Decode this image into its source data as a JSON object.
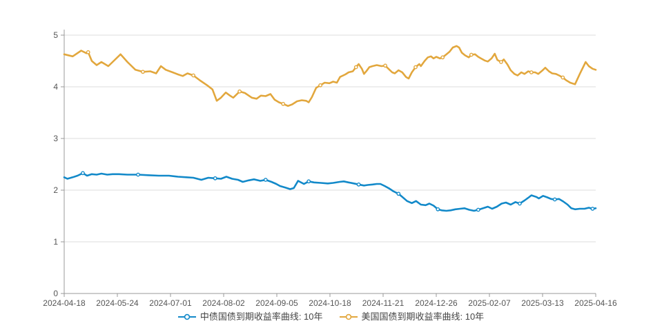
{
  "page": {
    "background": "#ffffff"
  },
  "axes": {
    "axis_color": "#999999",
    "grid_color": "#dcdcdc",
    "text_color": "#555555",
    "legend_text_color": "#444444"
  },
  "chart_data": {
    "type": "line",
    "title": "",
    "xlabel": "",
    "ylabel": "",
    "ylim": [
      0,
      5
    ],
    "y_ticks": [
      0,
      1,
      2,
      3,
      4,
      5
    ],
    "x_tick_labels": [
      "2024-04-18",
      "2024-05-24",
      "2024-07-01",
      "2024-08-02",
      "2024-09-05",
      "2024-10-18",
      "2024-11-21",
      "2024-12-26",
      "2025-02-07",
      "2025-03-13",
      "2025-04-16"
    ],
    "grid": true,
    "legend_position": "bottom-center",
    "x_unit": "fraction-of-axis (0 = 2024-04-18, 1 = 2025-04-16, daily yield data)",
    "series": [
      {
        "name": "中债国债到期收益率曲线: 10年",
        "color": "#1289c9",
        "points": [
          [
            0.0,
            2.25
          ],
          [
            0.006,
            2.22
          ],
          [
            0.016,
            2.25
          ],
          [
            0.025,
            2.28
          ],
          [
            0.035,
            2.33
          ],
          [
            0.043,
            2.28
          ],
          [
            0.052,
            2.31
          ],
          [
            0.061,
            2.3
          ],
          [
            0.07,
            2.32
          ],
          [
            0.081,
            2.3
          ],
          [
            0.091,
            2.31
          ],
          [
            0.103,
            2.31
          ],
          [
            0.119,
            2.3
          ],
          [
            0.139,
            2.3
          ],
          [
            0.158,
            2.29
          ],
          [
            0.178,
            2.28
          ],
          [
            0.197,
            2.28
          ],
          [
            0.214,
            2.26
          ],
          [
            0.23,
            2.25
          ],
          [
            0.243,
            2.24
          ],
          [
            0.258,
            2.2
          ],
          [
            0.271,
            2.24
          ],
          [
            0.284,
            2.23
          ],
          [
            0.295,
            2.22
          ],
          [
            0.305,
            2.26
          ],
          [
            0.316,
            2.22
          ],
          [
            0.327,
            2.2
          ],
          [
            0.336,
            2.16
          ],
          [
            0.347,
            2.19
          ],
          [
            0.357,
            2.21
          ],
          [
            0.369,
            2.18
          ],
          [
            0.379,
            2.2
          ],
          [
            0.39,
            2.16
          ],
          [
            0.399,
            2.12
          ],
          [
            0.406,
            2.08
          ],
          [
            0.416,
            2.05
          ],
          [
            0.425,
            2.02
          ],
          [
            0.432,
            2.04
          ],
          [
            0.44,
            2.18
          ],
          [
            0.451,
            2.12
          ],
          [
            0.46,
            2.17
          ],
          [
            0.47,
            2.15
          ],
          [
            0.483,
            2.14
          ],
          [
            0.496,
            2.13
          ],
          [
            0.506,
            2.14
          ],
          [
            0.518,
            2.16
          ],
          [
            0.526,
            2.17
          ],
          [
            0.535,
            2.15
          ],
          [
            0.545,
            2.13
          ],
          [
            0.554,
            2.11
          ],
          [
            0.564,
            2.09
          ],
          [
            0.571,
            2.1
          ],
          [
            0.58,
            2.11
          ],
          [
            0.588,
            2.12
          ],
          [
            0.595,
            2.12
          ],
          [
            0.603,
            2.08
          ],
          [
            0.612,
            2.03
          ],
          [
            0.619,
            1.98
          ],
          [
            0.629,
            1.93
          ],
          [
            0.636,
            1.87
          ],
          [
            0.645,
            1.79
          ],
          [
            0.654,
            1.75
          ],
          [
            0.662,
            1.79
          ],
          [
            0.671,
            1.72
          ],
          [
            0.68,
            1.71
          ],
          [
            0.687,
            1.74
          ],
          [
            0.695,
            1.7
          ],
          [
            0.703,
            1.63
          ],
          [
            0.71,
            1.61
          ],
          [
            0.719,
            1.6
          ],
          [
            0.727,
            1.61
          ],
          [
            0.736,
            1.63
          ],
          [
            0.745,
            1.64
          ],
          [
            0.753,
            1.65
          ],
          [
            0.762,
            1.62
          ],
          [
            0.771,
            1.6
          ],
          [
            0.779,
            1.62
          ],
          [
            0.788,
            1.65
          ],
          [
            0.797,
            1.68
          ],
          [
            0.805,
            1.64
          ],
          [
            0.814,
            1.68
          ],
          [
            0.823,
            1.74
          ],
          [
            0.831,
            1.76
          ],
          [
            0.84,
            1.72
          ],
          [
            0.849,
            1.77
          ],
          [
            0.857,
            1.74
          ],
          [
            0.866,
            1.8
          ],
          [
            0.874,
            1.86
          ],
          [
            0.879,
            1.9
          ],
          [
            0.888,
            1.87
          ],
          [
            0.893,
            1.84
          ],
          [
            0.901,
            1.89
          ],
          [
            0.909,
            1.86
          ],
          [
            0.916,
            1.83
          ],
          [
            0.923,
            1.82
          ],
          [
            0.931,
            1.83
          ],
          [
            0.939,
            1.78
          ],
          [
            0.947,
            1.72
          ],
          [
            0.954,
            1.65
          ],
          [
            0.961,
            1.63
          ],
          [
            0.97,
            1.64
          ],
          [
            0.979,
            1.64
          ],
          [
            0.987,
            1.66
          ],
          [
            0.994,
            1.64
          ],
          [
            1.0,
            1.65
          ]
        ]
      },
      {
        "name": "美国国债到期收益率曲线: 10年",
        "color": "#e2a73d",
        "points": [
          [
            0.0,
            4.63
          ],
          [
            0.016,
            4.59
          ],
          [
            0.032,
            4.7
          ],
          [
            0.042,
            4.65
          ],
          [
            0.045,
            4.67
          ],
          [
            0.052,
            4.5
          ],
          [
            0.061,
            4.42
          ],
          [
            0.07,
            4.48
          ],
          [
            0.083,
            4.4
          ],
          [
            0.095,
            4.52
          ],
          [
            0.106,
            4.63
          ],
          [
            0.119,
            4.48
          ],
          [
            0.134,
            4.33
          ],
          [
            0.148,
            4.29
          ],
          [
            0.162,
            4.3
          ],
          [
            0.173,
            4.26
          ],
          [
            0.182,
            4.4
          ],
          [
            0.191,
            4.33
          ],
          [
            0.204,
            4.28
          ],
          [
            0.214,
            4.24
          ],
          [
            0.223,
            4.21
          ],
          [
            0.232,
            4.26
          ],
          [
            0.243,
            4.22
          ],
          [
            0.256,
            4.12
          ],
          [
            0.269,
            4.03
          ],
          [
            0.279,
            3.95
          ],
          [
            0.287,
            3.73
          ],
          [
            0.295,
            3.79
          ],
          [
            0.304,
            3.89
          ],
          [
            0.312,
            3.83
          ],
          [
            0.318,
            3.79
          ],
          [
            0.33,
            3.91
          ],
          [
            0.34,
            3.88
          ],
          [
            0.353,
            3.79
          ],
          [
            0.362,
            3.77
          ],
          [
            0.37,
            3.83
          ],
          [
            0.379,
            3.82
          ],
          [
            0.388,
            3.86
          ],
          [
            0.396,
            3.75
          ],
          [
            0.404,
            3.7
          ],
          [
            0.412,
            3.67
          ],
          [
            0.421,
            3.63
          ],
          [
            0.429,
            3.66
          ],
          [
            0.438,
            3.72
          ],
          [
            0.447,
            3.74
          ],
          [
            0.455,
            3.73
          ],
          [
            0.46,
            3.7
          ],
          [
            0.466,
            3.8
          ],
          [
            0.474,
            3.98
          ],
          [
            0.482,
            4.03
          ],
          [
            0.49,
            4.08
          ],
          [
            0.499,
            4.07
          ],
          [
            0.506,
            4.1
          ],
          [
            0.513,
            4.08
          ],
          [
            0.519,
            4.19
          ],
          [
            0.529,
            4.24
          ],
          [
            0.535,
            4.28
          ],
          [
            0.543,
            4.3
          ],
          [
            0.549,
            4.38
          ],
          [
            0.554,
            4.44
          ],
          [
            0.56,
            4.35
          ],
          [
            0.564,
            4.25
          ],
          [
            0.569,
            4.31
          ],
          [
            0.574,
            4.38
          ],
          [
            0.58,
            4.4
          ],
          [
            0.588,
            4.42
          ],
          [
            0.597,
            4.4
          ],
          [
            0.604,
            4.41
          ],
          [
            0.61,
            4.35
          ],
          [
            0.617,
            4.28
          ],
          [
            0.622,
            4.26
          ],
          [
            0.629,
            4.32
          ],
          [
            0.636,
            4.28
          ],
          [
            0.643,
            4.19
          ],
          [
            0.648,
            4.16
          ],
          [
            0.654,
            4.28
          ],
          [
            0.661,
            4.38
          ],
          [
            0.668,
            4.44
          ],
          [
            0.671,
            4.4
          ],
          [
            0.678,
            4.5
          ],
          [
            0.684,
            4.57
          ],
          [
            0.69,
            4.59
          ],
          [
            0.695,
            4.55
          ],
          [
            0.7,
            4.58
          ],
          [
            0.707,
            4.55
          ],
          [
            0.712,
            4.57
          ],
          [
            0.718,
            4.62
          ],
          [
            0.725,
            4.68
          ],
          [
            0.731,
            4.76
          ],
          [
            0.738,
            4.79
          ],
          [
            0.743,
            4.76
          ],
          [
            0.748,
            4.66
          ],
          [
            0.754,
            4.61
          ],
          [
            0.761,
            4.57
          ],
          [
            0.766,
            4.62
          ],
          [
            0.773,
            4.63
          ],
          [
            0.779,
            4.58
          ],
          [
            0.784,
            4.55
          ],
          [
            0.791,
            4.51
          ],
          [
            0.797,
            4.49
          ],
          [
            0.804,
            4.55
          ],
          [
            0.81,
            4.64
          ],
          [
            0.815,
            4.52
          ],
          [
            0.822,
            4.48
          ],
          [
            0.827,
            4.53
          ],
          [
            0.834,
            4.43
          ],
          [
            0.84,
            4.32
          ],
          [
            0.847,
            4.25
          ],
          [
            0.853,
            4.22
          ],
          [
            0.86,
            4.28
          ],
          [
            0.866,
            4.25
          ],
          [
            0.873,
            4.3
          ],
          [
            0.879,
            4.28
          ],
          [
            0.886,
            4.28
          ],
          [
            0.892,
            4.25
          ],
          [
            0.899,
            4.31
          ],
          [
            0.905,
            4.37
          ],
          [
            0.912,
            4.3
          ],
          [
            0.918,
            4.26
          ],
          [
            0.925,
            4.25
          ],
          [
            0.931,
            4.22
          ],
          [
            0.938,
            4.18
          ],
          [
            0.944,
            4.13
          ],
          [
            0.952,
            4.08
          ],
          [
            0.961,
            4.05
          ],
          [
            0.97,
            4.25
          ],
          [
            0.981,
            4.48
          ],
          [
            0.987,
            4.4
          ],
          [
            0.994,
            4.35
          ],
          [
            1.0,
            4.33
          ]
        ]
      }
    ]
  }
}
